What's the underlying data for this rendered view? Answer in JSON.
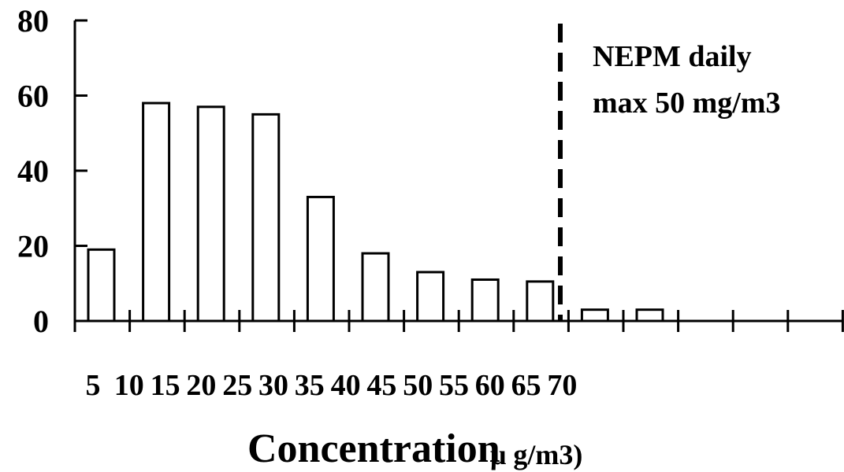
{
  "chart_data": {
    "type": "bar",
    "xlabel": "Concentration",
    "xlabel_unit": "μ g/m3)",
    "ylabel": "",
    "ylim": [
      0,
      80
    ],
    "yticks": [
      "0",
      "20",
      "40",
      "60",
      "80"
    ],
    "categories": [
      "5",
      "10",
      "15",
      "20",
      "25",
      "30",
      "35",
      "40",
      "45",
      "50",
      "55",
      "60",
      "65",
      "70"
    ],
    "values": [
      19,
      58,
      57,
      55,
      33,
      18,
      13,
      11,
      10.5,
      3,
      3,
      0,
      0,
      0
    ],
    "reference_line": {
      "x": 50,
      "style": "dashed",
      "label_lines": [
        "NEPM daily",
        "max 50 mg/m3"
      ]
    },
    "grid": false,
    "legend": "none",
    "colors": {
      "bar_fill": "#ffffff",
      "bar_stroke": "#000000",
      "axis": "#000000"
    }
  }
}
